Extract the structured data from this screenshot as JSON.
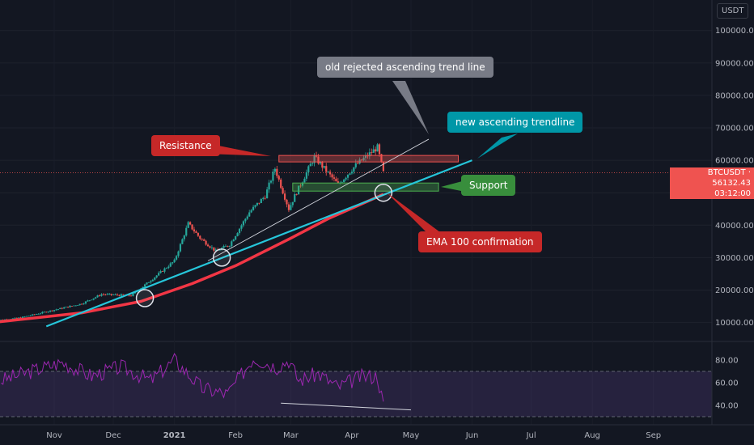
{
  "chart_data": [
    {
      "type": "candlestick",
      "symbol": "BTCUSDT",
      "currency": "USDT",
      "current_price": "56132.43",
      "countdown": "03:12:00",
      "yaxis": {
        "ticks": [
          10000,
          20000,
          30000,
          40000,
          50000,
          60000,
          70000,
          80000,
          90000,
          100000
        ],
        "tick_labels": [
          "10000.00",
          "20000.00",
          "30000.00",
          "40000.00",
          "50000.00",
          "60000.00",
          "70000.00",
          "80000.00",
          "90000.00",
          "100000.00"
        ]
      },
      "xaxis": {
        "tick_labels": [
          "Nov",
          "Dec",
          "2021",
          "Feb",
          "Mar",
          "Apr",
          "May",
          "Jun",
          "Jul",
          "Aug",
          "Sep"
        ]
      },
      "price_path": [
        [
          "2020-10-01",
          10500
        ],
        [
          "2020-10-15",
          11500
        ],
        [
          "2020-10-30",
          13600
        ],
        [
          "2020-11-15",
          15800
        ],
        [
          "2020-11-25",
          18700
        ],
        [
          "2020-12-10",
          18300
        ],
        [
          "2020-12-20",
          23000
        ],
        [
          "2021-01-01",
          29000
        ],
        [
          "2021-01-08",
          40500
        ],
        [
          "2021-01-14",
          36000
        ],
        [
          "2021-01-22",
          32000
        ],
        [
          "2021-01-29",
          34000
        ],
        [
          "2021-02-08",
          44000
        ],
        [
          "2021-02-16",
          49000
        ],
        [
          "2021-02-21",
          57500
        ],
        [
          "2021-02-28",
          45000
        ],
        [
          "2021-03-03",
          49000
        ],
        [
          "2021-03-13",
          61000
        ],
        [
          "2021-03-25",
          52500
        ],
        [
          "2021-04-03",
          58500
        ],
        [
          "2021-04-14",
          64000
        ],
        [
          "2021-04-17",
          56132
        ]
      ],
      "ema100": [
        [
          "2020-10-01",
          10000
        ],
        [
          "2020-11-15",
          13000
        ],
        [
          "2020-12-15",
          16500
        ],
        [
          "2021-01-10",
          22000
        ],
        [
          "2021-02-01",
          27500
        ],
        [
          "2021-03-01",
          36000
        ],
        [
          "2021-03-20",
          42000
        ],
        [
          "2021-04-17",
          49500
        ]
      ],
      "annotations": {
        "old_trendline_label": "old rejected ascending trend line",
        "new_trendline_label": "new ascending trendline",
        "resistance_label": "Resistance",
        "support_label": "Support",
        "ema_label": "EMA 100 confirmation",
        "resistance_zone": [
          59500,
          61500
        ],
        "support_zone": [
          50500,
          53000
        ]
      }
    },
    {
      "type": "line",
      "indicator": "RSI",
      "yaxis": {
        "ticks": [
          40,
          60,
          80
        ],
        "tick_labels": [
          "40.00",
          "60.00",
          "80.00"
        ]
      },
      "band": [
        30,
        70
      ],
      "values": [
        [
          "2020-10-05",
          62
        ],
        [
          "2020-10-20",
          70
        ],
        [
          "2020-11-05",
          78
        ],
        [
          "2020-11-20",
          66
        ],
        [
          "2020-12-05",
          74
        ],
        [
          "2020-12-20",
          62
        ],
        [
          "2021-01-01",
          80
        ],
        [
          "2021-01-15",
          55
        ],
        [
          "2021-01-28",
          50
        ],
        [
          "2021-02-10",
          82
        ],
        [
          "2021-02-22",
          74
        ],
        [
          "2021-02-28",
          80
        ],
        [
          "2021-03-05",
          62
        ],
        [
          "2021-03-15",
          68
        ],
        [
          "2021-03-25",
          56
        ],
        [
          "2021-04-05",
          65
        ],
        [
          "2021-04-14",
          66
        ],
        [
          "2021-04-17",
          40
        ]
      ]
    }
  ]
}
